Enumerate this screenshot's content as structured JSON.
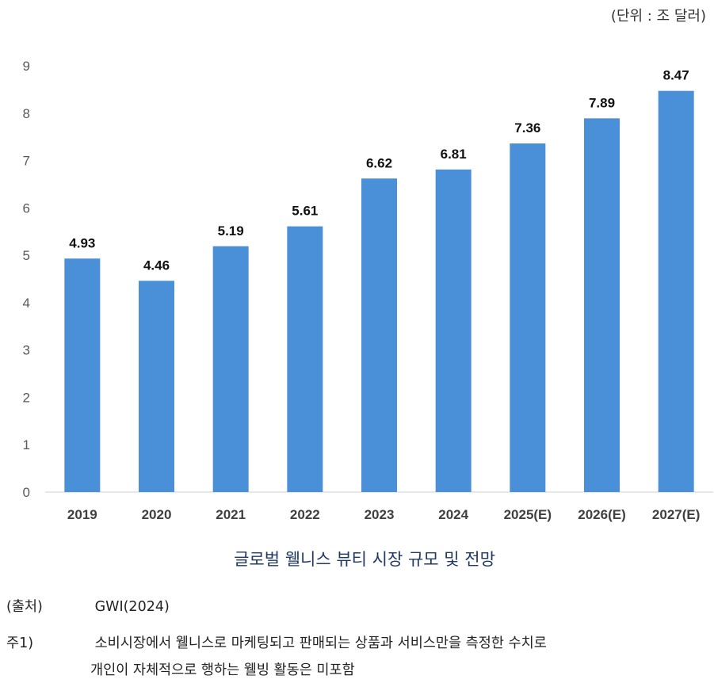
{
  "unit_label": "(단위 : 조 달러)",
  "caption": "글로벌 웰니스 뷰티 시장 규모 및 전망",
  "source": {
    "key": "(출처)",
    "value": "GWI(2024)"
  },
  "note1": {
    "key": "주1)",
    "line1": "소비시장에서 웰니스로 마케팅되고 판매되는 상품과 서비스만을 측정한 수치로",
    "line2": "개인이 자체적으로 행하는 웰빙 활동은 미포함"
  },
  "chart_data": {
    "type": "bar",
    "categories": [
      "2019",
      "2020",
      "2021",
      "2022",
      "2023",
      "2024",
      "2025(E)",
      "2026(E)",
      "2027(E)"
    ],
    "values": [
      4.93,
      4.46,
      5.19,
      5.61,
      6.62,
      6.81,
      7.36,
      7.89,
      8.47
    ],
    "value_labels": [
      "4.93",
      "4.46",
      "5.19",
      "5.61",
      "6.62",
      "6.81",
      "7.36",
      "7.89",
      "8.47"
    ],
    "ylim": [
      0,
      9
    ],
    "yticks": [
      "0",
      "1",
      "2",
      "3",
      "4",
      "5",
      "6",
      "7",
      "8",
      "9"
    ],
    "grid": false,
    "bar_color": "#4a90d9"
  }
}
